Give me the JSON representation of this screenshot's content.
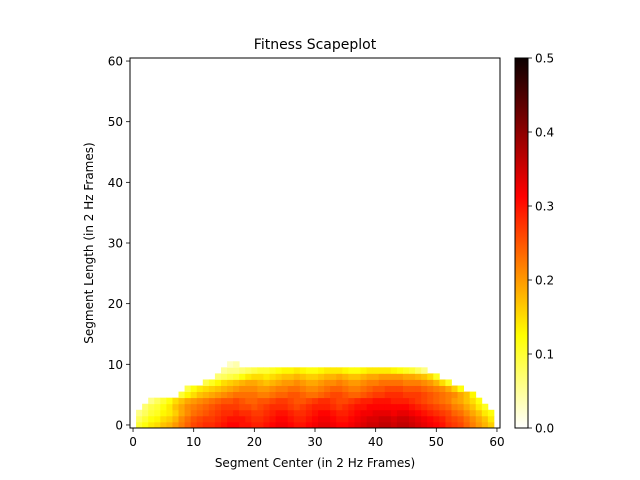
{
  "chart_data": {
    "type": "heatmap",
    "title": "Fitness Scapeplot",
    "xlabel": "Segment Center (in 2 Hz Frames)",
    "ylabel": "Segment Length (in 2 Hz Frames)",
    "xlim": [
      -0.5,
      60.5
    ],
    "ylim": [
      -0.5,
      60.5
    ],
    "xticks": [
      0,
      10,
      20,
      30,
      40,
      50,
      60
    ],
    "yticks": [
      0,
      10,
      20,
      30,
      40,
      50,
      60
    ],
    "colormap": "hot_r",
    "colorbar": {
      "vmin": 0.0,
      "vmax": 0.5,
      "ticks": [
        0.0,
        0.1,
        0.2,
        0.3,
        0.4,
        0.5
      ],
      "tick_labels": [
        "0.0",
        "0.1",
        "0.2",
        "0.3",
        "0.4",
        "0.5"
      ]
    },
    "grid": false,
    "rows": [
      {
        "length": 0,
        "centers": [
          1,
          59
        ],
        "values": [
          0.1,
          0.12,
          0.14,
          0.15,
          0.17,
          0.18,
          0.2,
          0.22,
          0.24,
          0.26,
          0.27,
          0.28,
          0.28,
          0.29,
          0.3,
          0.31,
          0.31,
          0.3,
          0.3,
          0.29,
          0.29,
          0.3,
          0.31,
          0.32,
          0.32,
          0.31,
          0.3,
          0.3,
          0.31,
          0.32,
          0.33,
          0.33,
          0.32,
          0.31,
          0.31,
          0.32,
          0.33,
          0.34,
          0.35,
          0.35,
          0.36,
          0.36,
          0.35,
          0.36,
          0.36,
          0.35,
          0.34,
          0.33,
          0.32,
          0.31,
          0.3,
          0.28,
          0.27,
          0.26,
          0.24,
          0.22,
          0.2,
          0.18,
          0.16
        ]
      },
      {
        "length": 1,
        "centers": [
          1,
          59
        ],
        "values": [
          0.08,
          0.1,
          0.12,
          0.13,
          0.15,
          0.16,
          0.18,
          0.21,
          0.23,
          0.25,
          0.26,
          0.27,
          0.27,
          0.28,
          0.29,
          0.3,
          0.3,
          0.3,
          0.29,
          0.28,
          0.28,
          0.29,
          0.3,
          0.31,
          0.31,
          0.3,
          0.29,
          0.29,
          0.3,
          0.31,
          0.32,
          0.32,
          0.31,
          0.3,
          0.3,
          0.31,
          0.32,
          0.33,
          0.34,
          0.34,
          0.35,
          0.35,
          0.34,
          0.35,
          0.35,
          0.34,
          0.33,
          0.32,
          0.31,
          0.3,
          0.29,
          0.27,
          0.26,
          0.25,
          0.23,
          0.21,
          0.19,
          0.17,
          0.14
        ]
      },
      {
        "length": 2,
        "centers": [
          1,
          59
        ],
        "values": [
          0.06,
          0.08,
          0.1,
          0.11,
          0.13,
          0.14,
          0.16,
          0.19,
          0.21,
          0.23,
          0.24,
          0.25,
          0.26,
          0.27,
          0.28,
          0.28,
          0.29,
          0.28,
          0.28,
          0.27,
          0.27,
          0.28,
          0.29,
          0.3,
          0.3,
          0.29,
          0.28,
          0.28,
          0.29,
          0.3,
          0.31,
          0.31,
          0.3,
          0.29,
          0.29,
          0.3,
          0.31,
          0.32,
          0.32,
          0.33,
          0.33,
          0.33,
          0.32,
          0.33,
          0.33,
          0.32,
          0.31,
          0.3,
          0.29,
          0.28,
          0.27,
          0.26,
          0.24,
          0.23,
          0.21,
          0.19,
          0.17,
          0.14,
          0.12
        ]
      },
      {
        "length": 3,
        "centers": [
          2,
          58
        ],
        "values": [
          0.07,
          0.09,
          0.1,
          0.12,
          0.14,
          0.17,
          0.19,
          0.21,
          0.22,
          0.23,
          0.24,
          0.25,
          0.26,
          0.27,
          0.27,
          0.27,
          0.26,
          0.26,
          0.25,
          0.26,
          0.27,
          0.28,
          0.28,
          0.28,
          0.27,
          0.26,
          0.27,
          0.28,
          0.29,
          0.29,
          0.29,
          0.28,
          0.27,
          0.28,
          0.29,
          0.3,
          0.3,
          0.31,
          0.31,
          0.31,
          0.31,
          0.31,
          0.31,
          0.31,
          0.3,
          0.29,
          0.28,
          0.27,
          0.26,
          0.25,
          0.24,
          0.22,
          0.21,
          0.19,
          0.17,
          0.14,
          0.11
        ]
      },
      {
        "length": 4,
        "centers": [
          3,
          57
        ],
        "values": [
          0.06,
          0.08,
          0.1,
          0.12,
          0.15,
          0.17,
          0.19,
          0.2,
          0.21,
          0.22,
          0.23,
          0.24,
          0.25,
          0.25,
          0.26,
          0.25,
          0.24,
          0.24,
          0.25,
          0.25,
          0.26,
          0.27,
          0.27,
          0.26,
          0.25,
          0.25,
          0.26,
          0.27,
          0.28,
          0.28,
          0.27,
          0.26,
          0.26,
          0.27,
          0.28,
          0.29,
          0.29,
          0.3,
          0.3,
          0.3,
          0.29,
          0.29,
          0.29,
          0.28,
          0.27,
          0.26,
          0.25,
          0.24,
          0.23,
          0.22,
          0.2,
          0.19,
          0.17,
          0.15,
          0.12
        ]
      },
      {
        "length": 5,
        "centers": [
          8,
          56
        ],
        "values": [
          0.1,
          0.13,
          0.15,
          0.17,
          0.18,
          0.19,
          0.2,
          0.21,
          0.22,
          0.23,
          0.23,
          0.23,
          0.23,
          0.22,
          0.22,
          0.23,
          0.24,
          0.24,
          0.25,
          0.25,
          0.24,
          0.23,
          0.23,
          0.24,
          0.25,
          0.26,
          0.26,
          0.25,
          0.24,
          0.24,
          0.25,
          0.26,
          0.27,
          0.27,
          0.28,
          0.28,
          0.28,
          0.27,
          0.27,
          0.27,
          0.26,
          0.25,
          0.24,
          0.23,
          0.22,
          0.21,
          0.19,
          0.17,
          0.13
        ]
      },
      {
        "length": 6,
        "centers": [
          9,
          54
        ],
        "values": [
          0.09,
          0.12,
          0.14,
          0.15,
          0.16,
          0.17,
          0.18,
          0.19,
          0.2,
          0.21,
          0.21,
          0.21,
          0.2,
          0.2,
          0.21,
          0.22,
          0.22,
          0.23,
          0.23,
          0.22,
          0.21,
          0.21,
          0.22,
          0.23,
          0.24,
          0.24,
          0.23,
          0.22,
          0.22,
          0.23,
          0.24,
          0.25,
          0.25,
          0.26,
          0.26,
          0.26,
          0.25,
          0.25,
          0.25,
          0.24,
          0.23,
          0.22,
          0.21,
          0.19,
          0.16,
          0.12
        ]
      },
      {
        "length": 7,
        "centers": [
          12,
          52
        ],
        "values": [
          0.09,
          0.11,
          0.13,
          0.15,
          0.16,
          0.17,
          0.18,
          0.19,
          0.19,
          0.18,
          0.17,
          0.18,
          0.19,
          0.2,
          0.2,
          0.21,
          0.2,
          0.19,
          0.19,
          0.2,
          0.21,
          0.21,
          0.22,
          0.21,
          0.2,
          0.2,
          0.21,
          0.22,
          0.22,
          0.23,
          0.23,
          0.23,
          0.23,
          0.22,
          0.22,
          0.22,
          0.21,
          0.2,
          0.18,
          0.15,
          0.11
        ]
      },
      {
        "length": 8,
        "centers": [
          14,
          50
        ],
        "values": [
          0.07,
          0.08,
          0.09,
          0.1,
          0.12,
          0.14,
          0.15,
          0.15,
          0.14,
          0.15,
          0.16,
          0.17,
          0.17,
          0.18,
          0.17,
          0.16,
          0.16,
          0.17,
          0.18,
          0.18,
          0.19,
          0.18,
          0.17,
          0.17,
          0.18,
          0.19,
          0.19,
          0.2,
          0.2,
          0.2,
          0.2,
          0.19,
          0.19,
          0.18,
          0.17,
          0.15,
          0.11
        ]
      },
      {
        "length": 9,
        "centers": [
          15,
          48
        ],
        "values": [
          0.05,
          0.06,
          0.06,
          0.07,
          0.08,
          0.09,
          0.1,
          0.1,
          0.11,
          0.12,
          0.13,
          0.13,
          0.14,
          0.13,
          0.12,
          0.12,
          0.13,
          0.14,
          0.14,
          0.14,
          0.13,
          0.12,
          0.12,
          0.13,
          0.14,
          0.14,
          0.14,
          0.14,
          0.13,
          0.12,
          0.11,
          0.1,
          0.08,
          0.06
        ]
      },
      {
        "length": 10,
        "centers": [
          16,
          17
        ],
        "values": [
          0.03,
          0.04
        ]
      }
    ]
  }
}
